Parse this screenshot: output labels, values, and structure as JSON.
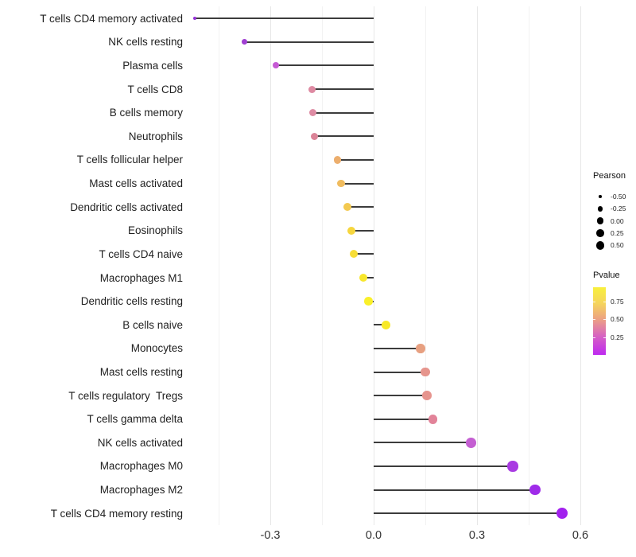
{
  "chart_data": {
    "type": "lollipop",
    "title": "",
    "xlabel": "",
    "ylabel": "",
    "x_axis": {
      "ticks": [
        -0.3,
        0.0,
        0.3,
        0.6
      ],
      "tick_labels": [
        "-0.3",
        "0.0",
        "0.3",
        "0.6"
      ],
      "minor_ticks": [
        -0.45,
        -0.15,
        0.15,
        0.45
      ],
      "xlim": [
        -0.538,
        0.607
      ],
      "baseline": 0.0
    },
    "grid": "vertical-only, faint gray on white",
    "rows": [
      {
        "label": "T cells CD4 memory activated",
        "pearson": -0.52,
        "pvalue": 0.05,
        "color": "#9530d6"
      },
      {
        "label": "NK cells resting",
        "pearson": -0.375,
        "pvalue": 0.1,
        "color": "#a03fd2"
      },
      {
        "label": "Plasma cells",
        "pearson": -0.284,
        "pvalue": 0.18,
        "color": "#c55ad4"
      },
      {
        "label": "T cells CD8",
        "pearson": -0.178,
        "pvalue": 0.42,
        "color": "#de8aa2"
      },
      {
        "label": "B cells memory",
        "pearson": -0.177,
        "pvalue": 0.42,
        "color": "#de8ca4"
      },
      {
        "label": "Neutrophils",
        "pearson": -0.171,
        "pvalue": 0.4,
        "color": "#db8498"
      },
      {
        "label": "T cells follicular helper",
        "pearson": -0.105,
        "pvalue": 0.62,
        "color": "#ecae6d"
      },
      {
        "label": "Mast cells activated",
        "pearson": -0.094,
        "pvalue": 0.67,
        "color": "#f0bc5f"
      },
      {
        "label": "Dendritic cells activated",
        "pearson": -0.077,
        "pvalue": 0.72,
        "color": "#f3c950"
      },
      {
        "label": "Eosinophils",
        "pearson": -0.065,
        "pvalue": 0.77,
        "color": "#f6d63e"
      },
      {
        "label": "T cells CD4 naive",
        "pearson": -0.058,
        "pvalue": 0.8,
        "color": "#f7dd36"
      },
      {
        "label": "Macrophages M1",
        "pearson": -0.03,
        "pvalue": 0.85,
        "color": "#f8e72c"
      },
      {
        "label": "Dendritic cells resting",
        "pearson": -0.015,
        "pvalue": 0.9,
        "color": "#faf02a"
      },
      {
        "label": "B cells naive",
        "pearson": 0.035,
        "pvalue": 0.87,
        "color": "#f7e928"
      },
      {
        "label": "Monocytes",
        "pearson": 0.136,
        "pvalue": 0.55,
        "color": "#e7a081"
      },
      {
        "label": "Mast cells resting",
        "pearson": 0.15,
        "pvalue": 0.48,
        "color": "#e6958d"
      },
      {
        "label": "T cells regulatory  Tregs",
        "pearson": 0.155,
        "pvalue": 0.47,
        "color": "#e6948e"
      },
      {
        "label": "T cells gamma delta",
        "pearson": 0.172,
        "pvalue": 0.42,
        "color": "#e28399"
      },
      {
        "label": "NK cells activated",
        "pearson": 0.283,
        "pvalue": 0.18,
        "color": "#c45fd2"
      },
      {
        "label": "Macrophages M0",
        "pearson": 0.404,
        "pvalue": 0.09,
        "color": "#a93be2"
      },
      {
        "label": "Macrophages M2",
        "pearson": 0.468,
        "pvalue": 0.06,
        "color": "#9f2be9"
      },
      {
        "label": "T cells CD4 memory resting",
        "pearson": 0.546,
        "pvalue": 0.04,
        "color": "#a221ee"
      }
    ],
    "legend": {
      "position": "right",
      "size_legend": {
        "title": "Pearson",
        "breaks": [
          -0.5,
          -0.25,
          0.0,
          0.25,
          0.5
        ],
        "break_labels": [
          "-0.50",
          "-0.25",
          "0.00",
          "0.25",
          "0.50"
        ],
        "dot_color": "#000000"
      },
      "color_legend": {
        "title": "Pvalue",
        "tick_labels": [
          "0.75",
          "0.50",
          "0.25"
        ],
        "tick_values": [
          0.75,
          0.5,
          0.25
        ],
        "bar_range": [
          0.0,
          0.95
        ],
        "gradient_bottom_to_top": [
          "#be29f0",
          "#d55ec6",
          "#ec9f85",
          "#f5d45c",
          "#f8f03c"
        ]
      }
    },
    "segment_color": "#3c3c3c",
    "background_color": "#ffffff"
  }
}
